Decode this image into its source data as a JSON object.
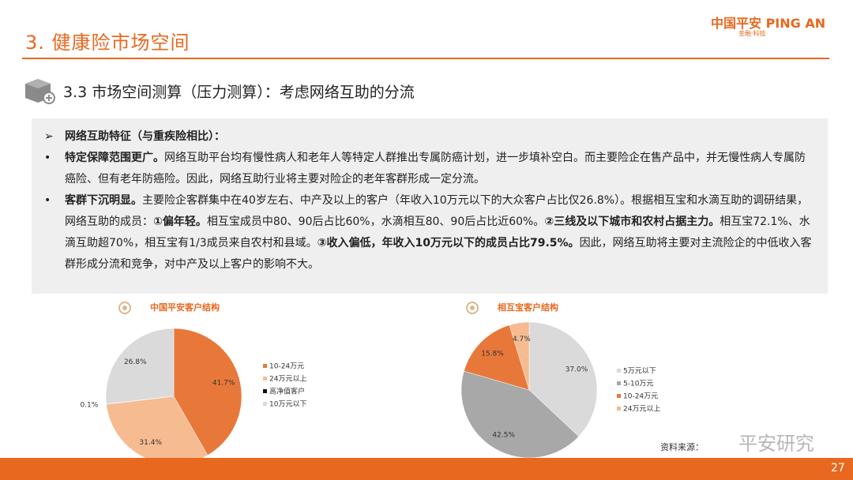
{
  "header": {
    "title": "3. 健康险市场空间",
    "logo": "中国平安 PING AN",
    "logo_sub": "金融·科技",
    "subtitle": "3.3 市场空间测算（压力测算）：考虑网络互助的分流"
  },
  "box": {
    "heading": "网络互助特征（与重疾险相比）：",
    "bullets": [
      [
        {
          "text": "特定保障范围更广。",
          "bold": true
        },
        {
          "text": "网络互助平台均有慢性病人和老年人等特定人群推出专属防癌计划，进一步填补空白。而主要险企在售产品中，并无慢性病人专属防癌险、但有老年防癌险。因此，网络互助行业将主要对险企的老年客群形成一定分流。",
          "bold": false
        }
      ],
      [
        {
          "text": "客群下沉明显。",
          "bold": true
        },
        {
          "text": "主要险企客群集中在40岁左右、中产及以上的客户（年收入10万元以下的大众客户占比仅26.8%）。根据相互宝和水滴互助的调研结果，网络互助的成员：",
          "bold": false
        },
        {
          "text": "①偏年轻。",
          "bold": true
        },
        {
          "text": "相互宝成员中80、90后占比60%，水滴相互80、90后占比近60%。",
          "bold": false
        },
        {
          "text": "②三线及以下城市和农村占据主力。",
          "bold": true
        },
        {
          "text": "相互宝72.1%、水滴互助超70%，相互宝有1/3成员来自农村和县域。",
          "bold": false
        },
        {
          "text": "③收入偏低，年收入10万元以下的成员占比79.5%。",
          "bold": true
        },
        {
          "text": "因此，网络互助将主要对主流险企的中低收入客群形成分流和竞争，对中产及以上客户的影响不大。",
          "bold": false
        }
      ]
    ]
  },
  "chart_data": [
    {
      "type": "pie",
      "title": "中国平安客户结构",
      "categories": [
        "10-24万元",
        "24万元以上",
        "高净值客户",
        "10万元以下"
      ],
      "values": [
        41.7,
        31.4,
        0.1,
        26.8
      ],
      "value_labels": [
        "41.7%",
        "31.4%",
        "0.1%",
        "26.8%"
      ],
      "colors": [
        "#e8783a",
        "#f6bb90",
        "#111111",
        "#dadada"
      ]
    },
    {
      "type": "pie",
      "title": "相互宝客户结构",
      "categories": [
        "5万元以下",
        "5-10万元",
        "10-24万元",
        "24万元以上"
      ],
      "values": [
        37.0,
        42.5,
        15.8,
        4.7
      ],
      "value_labels": [
        "37.0%",
        "42.5%",
        "15.8%",
        "4.7%"
      ],
      "colors": [
        "#dadada",
        "#a8a8a8",
        "#e8783a",
        "#f6bb90"
      ]
    }
  ],
  "footer": {
    "source": "资料来源：",
    "watermark": "平安研究",
    "page": "27"
  }
}
